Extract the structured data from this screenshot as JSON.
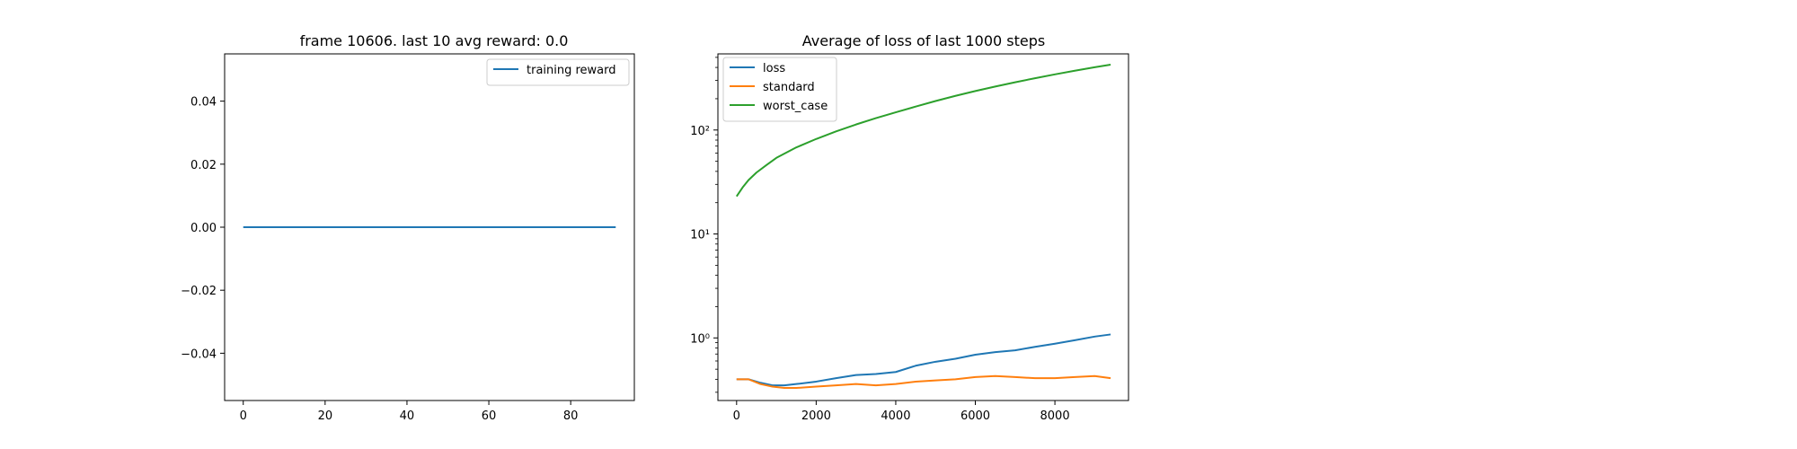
{
  "chart_data": [
    {
      "type": "line",
      "title": "frame 10606. last 10 avg reward: 0.0",
      "xlabel": "",
      "ylabel": "",
      "xlim": [
        -4.55,
        95.55
      ],
      "ylim": [
        -0.055,
        0.055
      ],
      "xticks": [
        0,
        20,
        40,
        60,
        80
      ],
      "xtick_labels": [
        "0",
        "20",
        "40",
        "60",
        "80"
      ],
      "yticks": [
        -0.04,
        -0.02,
        0.0,
        0.02,
        0.04
      ],
      "ytick_labels": [
        "−0.04",
        "−0.02",
        "0.00",
        "0.02",
        "0.04"
      ],
      "grid": false,
      "legend_position": "upper right",
      "series": [
        {
          "name": "training reward",
          "color": "#1f77b4",
          "x": [
            0,
            91
          ],
          "y": [
            0.0,
            0.0
          ]
        }
      ]
    },
    {
      "type": "line",
      "title": "Average of loss of last 1000 steps",
      "xlabel": "",
      "ylabel": "",
      "yscale": "log",
      "xlim": [
        -470,
        9850
      ],
      "ylim": [
        0.25,
        540
      ],
      "xticks": [
        0,
        2000,
        4000,
        6000,
        8000
      ],
      "xtick_labels": [
        "0",
        "2000",
        "4000",
        "6000",
        "8000"
      ],
      "yticks": [
        1,
        10,
        100
      ],
      "ytick_labels": [
        "10⁰",
        "10¹",
        "10²"
      ],
      "grid": false,
      "legend_position": "upper left",
      "series": [
        {
          "name": "loss",
          "color": "#1f77b4",
          "x": [
            0,
            300,
            600,
            900,
            1200,
            1500,
            2000,
            2500,
            3000,
            3500,
            4000,
            4500,
            5000,
            5500,
            6000,
            6500,
            7000,
            7500,
            8000,
            8500,
            9000,
            9400
          ],
          "y": [
            0.4,
            0.4,
            0.37,
            0.35,
            0.35,
            0.36,
            0.38,
            0.41,
            0.44,
            0.45,
            0.47,
            0.54,
            0.59,
            0.63,
            0.69,
            0.73,
            0.76,
            0.82,
            0.88,
            0.95,
            1.03,
            1.08
          ]
        },
        {
          "name": "standard",
          "color": "#ff7f0e",
          "x": [
            0,
            300,
            600,
            900,
            1200,
            1500,
            2000,
            2500,
            3000,
            3500,
            4000,
            4500,
            5000,
            5500,
            6000,
            6500,
            7000,
            7500,
            8000,
            8500,
            9000,
            9400
          ],
          "y": [
            0.4,
            0.4,
            0.36,
            0.34,
            0.33,
            0.33,
            0.34,
            0.35,
            0.36,
            0.35,
            0.36,
            0.38,
            0.39,
            0.4,
            0.42,
            0.43,
            0.42,
            0.41,
            0.41,
            0.42,
            0.43,
            0.41
          ]
        },
        {
          "name": "worst_case",
          "color": "#2ca02c",
          "x": [
            0,
            150,
            300,
            500,
            750,
            1000,
            1500,
            2000,
            2500,
            3000,
            3500,
            4000,
            4500,
            5000,
            5500,
            6000,
            6500,
            7000,
            7500,
            8000,
            8500,
            9000,
            9400
          ],
          "y": [
            23,
            28,
            33,
            39,
            46,
            54,
            68,
            82,
            97,
            113,
            130,
            148,
            168,
            190,
            213,
            237,
            262,
            288,
            315,
            343,
            372,
            402,
            425
          ]
        }
      ]
    }
  ]
}
